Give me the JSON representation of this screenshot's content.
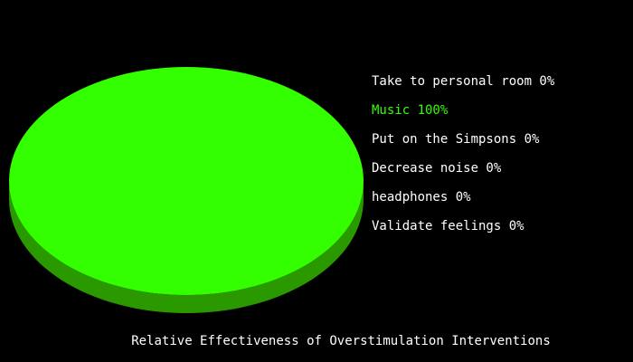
{
  "chart_data": {
    "type": "pie",
    "title": "Relative Effectiveness of Overstimulation Interventions",
    "slices": [
      {
        "label": "Take to personal room",
        "value": 0,
        "display": "Take to personal room 0%",
        "color": "#ffffff"
      },
      {
        "label": "Music",
        "value": 100,
        "display": "Music 100%",
        "color": "#33ff00"
      },
      {
        "label": "Put on the Simpsons",
        "value": 0,
        "display": "Put on the Simpsons 0%",
        "color": "#ffffff"
      },
      {
        "label": "Decrease noise",
        "value": 0,
        "display": "Decrease noise 0%",
        "color": "#ffffff"
      },
      {
        "label": "headphones",
        "value": 0,
        "display": "headphones 0%",
        "color": "#ffffff"
      },
      {
        "label": "Validate feelings",
        "value": 0,
        "display": "Validate feelings 0%",
        "color": "#ffffff"
      }
    ],
    "legend_position": "right",
    "style": "3d",
    "colors": {
      "background": "#000000",
      "pie_top": "#33ff00",
      "pie_side": "#2a9900"
    }
  }
}
